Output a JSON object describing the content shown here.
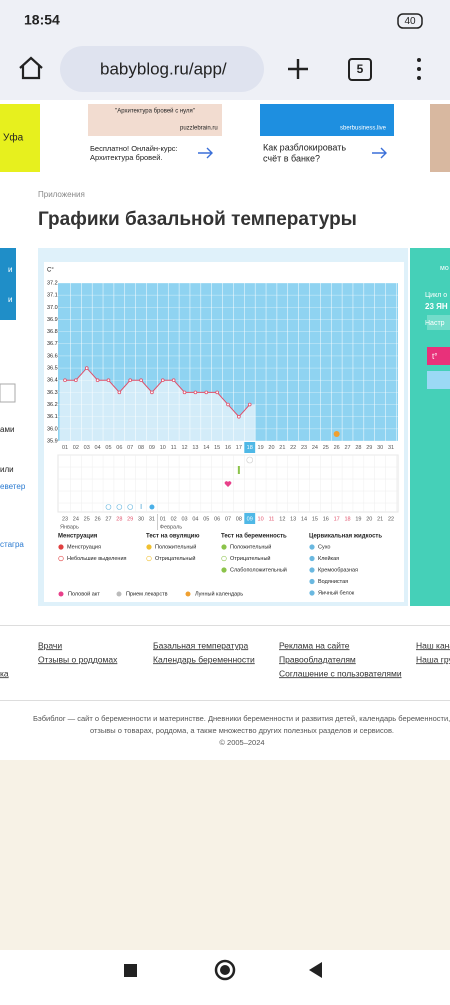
{
  "status": {
    "time": "18:54",
    "battery": "40"
  },
  "browser": {
    "url": "babyblog.ru/app/",
    "tabs": "5"
  },
  "ads": {
    "left": "Уфа",
    "items": [
      {
        "banner": "\"Архитектура бровей с нуля\"",
        "source": "puzzlebrain.ru",
        "text": [
          "Бесплатно! Онлайн-курс:",
          "Архитектура бровей."
        ]
      },
      {
        "source": "sberbusiness.live",
        "text": [
          "Как разблокировать",
          "счёт в банке?"
        ]
      }
    ]
  },
  "breadcrumb": "Приложения",
  "title": "Графики базальной температуры",
  "chart_data": {
    "type": "line",
    "y_unit": "C°",
    "categories": [
      "01",
      "02",
      "03",
      "04",
      "05",
      "06",
      "07",
      "08",
      "09",
      "10",
      "11",
      "12",
      "13",
      "14",
      "15",
      "16",
      "17",
      "18",
      "19",
      "20",
      "21",
      "22",
      "23",
      "24",
      "25",
      "26",
      "27",
      "28",
      "29",
      "30",
      "31"
    ],
    "values": [
      36.4,
      36.4,
      36.5,
      36.4,
      36.4,
      36.3,
      36.4,
      36.4,
      36.3,
      36.4,
      36.4,
      36.3,
      36.3,
      36.3,
      36.3,
      36.2,
      36.1,
      36.2,
      null,
      null,
      null,
      null,
      null,
      null,
      null,
      null,
      null,
      null,
      null,
      null,
      null
    ],
    "color": "#e0506a",
    "today": 17,
    "ylim": [
      35.9,
      37.2
    ],
    "yticks": [
      35.9,
      {
        "value": 36,
        "label": "36.0"
      },
      36.1,
      36.2,
      36.3,
      36.4,
      36.5,
      36.6,
      36.7,
      36.8,
      36.9,
      {
        "value": 37,
        "label": "37.0"
      },
      37.1,
      37.2
    ],
    "dates": [
      "23",
      "24",
      "25",
      "26",
      "27",
      "28",
      "29",
      "30",
      "31",
      "01",
      "02",
      "03",
      "04",
      "05",
      "06",
      "07",
      "08",
      "09",
      "10",
      "11",
      "12",
      "13",
      "14",
      "15",
      "16",
      "17",
      "18",
      "19",
      "20",
      "21",
      "22"
    ],
    "months": [
      "Январь",
      "Февраль"
    ],
    "legend": [
      {
        "title": "Менструация",
        "items": [
          "Менструация",
          "Небольшие выделения"
        ]
      },
      {
        "title": "Тест на овуляцию",
        "items": [
          "Положительный",
          "Отрицательный"
        ]
      },
      {
        "title": "Тест на беременность",
        "items": [
          "Положительный",
          "Отрицательный",
          "Слабоположительный"
        ]
      },
      {
        "title": "Цервикальная жидкость",
        "items": [
          "Сухо",
          "Клейкая",
          "Кремообразная",
          "Водянистая",
          "Яичный белок"
        ]
      }
    ],
    "legend_extra": [
      "Половой акт",
      "Прием лекарств",
      "Лунный календарь"
    ]
  },
  "side": {
    "right": [
      "мо",
      "Цикл о",
      "23 ЯН",
      "Настр"
    ],
    "left": [
      "и",
      "и",
      "ами",
      "или",
      "еветер",
      "стагра"
    ]
  },
  "footer": {
    "links": [
      [
        "Врачи",
        "Отзывы о роддомах"
      ],
      [
        "Базальная температура",
        "Календарь беременности"
      ],
      [
        "Реклама на сайте",
        "Правообладателям",
        "Соглашение с пользователями"
      ],
      [
        "Наш кана",
        "Наша гру"
      ]
    ],
    "left": "ка",
    "text": [
      "Бэбиблог — сайт о беременности и материнстве. Дневники беременности и развития детей, календарь беременности,",
      "отзывы о товарах, роддома, а также множество других полезных разделов и сервисов."
    ],
    "copyright": "© 2005–2024"
  }
}
